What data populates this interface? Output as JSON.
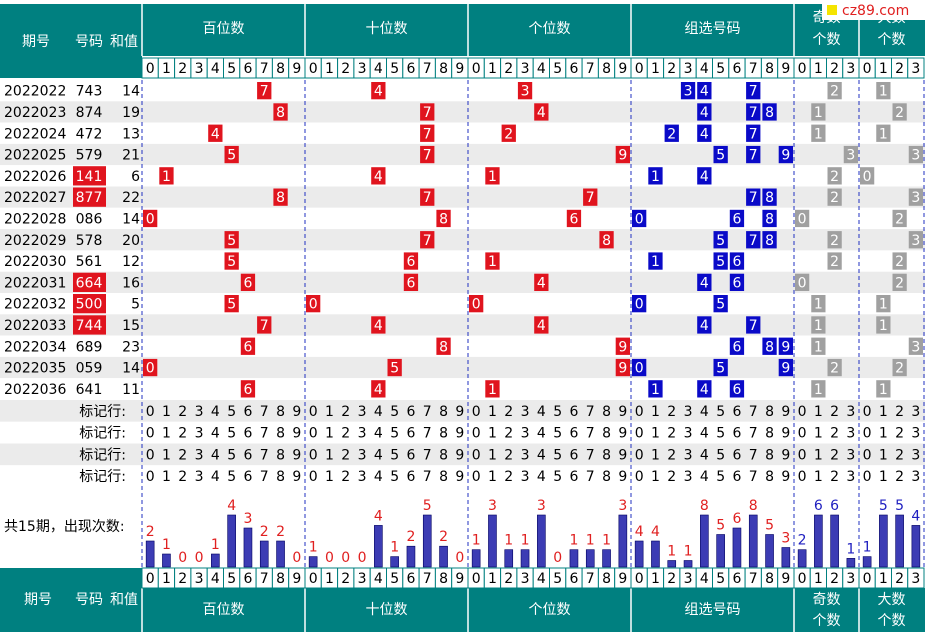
{
  "header": {
    "issue": "期号",
    "number": "号码",
    "sum": "和值",
    "groups": [
      "百位数",
      "十位数",
      "个位数",
      "组选号码"
    ],
    "odd": [
      "奇数",
      "个数"
    ],
    "big": [
      "大数",
      "个数"
    ],
    "digits": [
      0,
      1,
      2,
      3,
      4,
      5,
      6,
      7,
      8,
      9
    ],
    "counts": [
      0,
      1,
      2,
      3
    ],
    "logo": "cz89.com"
  },
  "rows": [
    {
      "issue": "2022022",
      "number": "743",
      "sum": 14,
      "digits": [
        7,
        4,
        3
      ],
      "odd": 2,
      "big": 1
    },
    {
      "issue": "2022023",
      "number": "874",
      "sum": 19,
      "digits": [
        8,
        7,
        4
      ],
      "odd": 1,
      "big": 2
    },
    {
      "issue": "2022024",
      "number": "472",
      "sum": 13,
      "digits": [
        4,
        7,
        2
      ],
      "odd": 1,
      "big": 1
    },
    {
      "issue": "2022025",
      "number": "579",
      "sum": 21,
      "digits": [
        5,
        7,
        9
      ],
      "odd": 3,
      "big": 3
    },
    {
      "issue": "2022026",
      "number": "141",
      "sum": 6,
      "digits": [
        1,
        4,
        1
      ],
      "odd": 2,
      "big": 0
    },
    {
      "issue": "2022027",
      "number": "877",
      "sum": 22,
      "digits": [
        8,
        7,
        7
      ],
      "odd": 2,
      "big": 3
    },
    {
      "issue": "2022028",
      "number": "086",
      "sum": 14,
      "digits": [
        0,
        8,
        6
      ],
      "odd": 0,
      "big": 2
    },
    {
      "issue": "2022029",
      "number": "578",
      "sum": 20,
      "digits": [
        5,
        7,
        8
      ],
      "odd": 2,
      "big": 3
    },
    {
      "issue": "2022030",
      "number": "561",
      "sum": 12,
      "digits": [
        5,
        6,
        1
      ],
      "odd": 2,
      "big": 2
    },
    {
      "issue": "2022031",
      "number": "664",
      "sum": 16,
      "digits": [
        6,
        6,
        4
      ],
      "odd": 0,
      "big": 2
    },
    {
      "issue": "2022032",
      "number": "500",
      "sum": 5,
      "digits": [
        5,
        0,
        0
      ],
      "odd": 1,
      "big": 1
    },
    {
      "issue": "2022033",
      "number": "744",
      "sum": 15,
      "digits": [
        7,
        4,
        4
      ],
      "odd": 1,
      "big": 1
    },
    {
      "issue": "2022034",
      "number": "689",
      "sum": 23,
      "digits": [
        6,
        8,
        9
      ],
      "odd": 1,
      "big": 3
    },
    {
      "issue": "2022035",
      "number": "059",
      "sum": 14,
      "digits": [
        0,
        5,
        9
      ],
      "odd": 2,
      "big": 2
    },
    {
      "issue": "2022036",
      "number": "641",
      "sum": 11,
      "digits": [
        6,
        4,
        1
      ],
      "odd": 1,
      "big": 1
    }
  ],
  "marker_rows": [
    "标记行:",
    "标记行:",
    "标记行:",
    "标记行:"
  ],
  "stats": {
    "label": "共15期，出现次数:",
    "positions": [
      [
        2,
        1,
        0,
        0,
        1,
        4,
        3,
        2,
        2,
        0
      ],
      [
        1,
        0,
        0,
        0,
        4,
        1,
        2,
        5,
        2,
        0
      ],
      [
        1,
        3,
        1,
        1,
        3,
        0,
        1,
        1,
        1,
        3
      ]
    ],
    "group": [
      4,
      4,
      1,
      1,
      8,
      5,
      6,
      8,
      5,
      3
    ],
    "odd": [
      2,
      6,
      6,
      1
    ],
    "big": [
      1,
      5,
      5,
      4
    ]
  },
  "colors": {
    "header": "#008080",
    "position": "#e0141e",
    "group": "#0a0ac8",
    "count": "#a0a0a0",
    "bar": "#3c3cb4",
    "stat_label": "#e02020",
    "count_label": "#2020c0"
  }
}
